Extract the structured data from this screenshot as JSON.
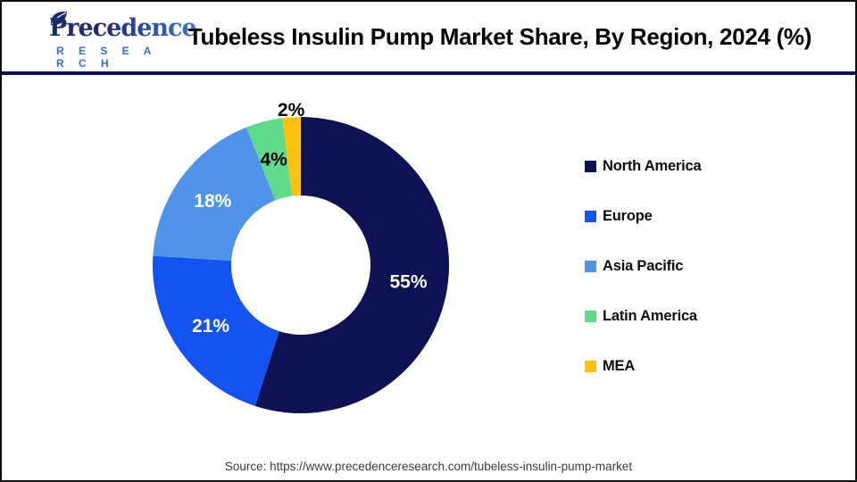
{
  "header": {
    "logo": {
      "brand_line1": "Precedence",
      "brand_line2": "R E S E A R C H"
    },
    "title": "Tubeless Insulin Pump Market Share, By Region, 2024 (%)"
  },
  "chart_data": {
    "type": "pie",
    "subtype": "donut",
    "title": "Tubeless Insulin Pump Market Share, By Region, 2024 (%)",
    "unit": "%",
    "start_angle_deg": 0,
    "direction": "clockwise",
    "inner_radius_frac": 0.47,
    "legend_position": "right",
    "slices": [
      {
        "label": "North America",
        "value": 55,
        "data_label": "55%",
        "color": "#0C1254",
        "label_color": "#FFFFFF",
        "label_placement": "inside"
      },
      {
        "label": "Europe",
        "value": 21,
        "data_label": "21%",
        "color": "#1453F0",
        "label_color": "#FFFFFF",
        "label_placement": "inside"
      },
      {
        "label": "Asia Pacific",
        "value": 18,
        "data_label": "18%",
        "color": "#4F94E8",
        "label_color": "#FFFFFF",
        "label_placement": "inside"
      },
      {
        "label": "Latin America",
        "value": 4,
        "data_label": "4%",
        "color": "#5FD98C",
        "label_color": "#000000",
        "label_placement": "inside"
      },
      {
        "label": "MEA",
        "value": 2,
        "data_label": "2%",
        "color": "#FCC10D",
        "label_color": "#000000",
        "label_placement": "outside"
      }
    ]
  },
  "footer": {
    "source": "Source: https://www.precedenceresearch.com/tubeless-insulin-pump-market"
  },
  "colors": {
    "divider": "#0D1353",
    "frame_border": "#0D0D0D",
    "logo_navy": "#1D2A6D",
    "logo_blue": "#2F6FD6",
    "title_text": "#000000",
    "source_text": "#3D3D3D"
  }
}
